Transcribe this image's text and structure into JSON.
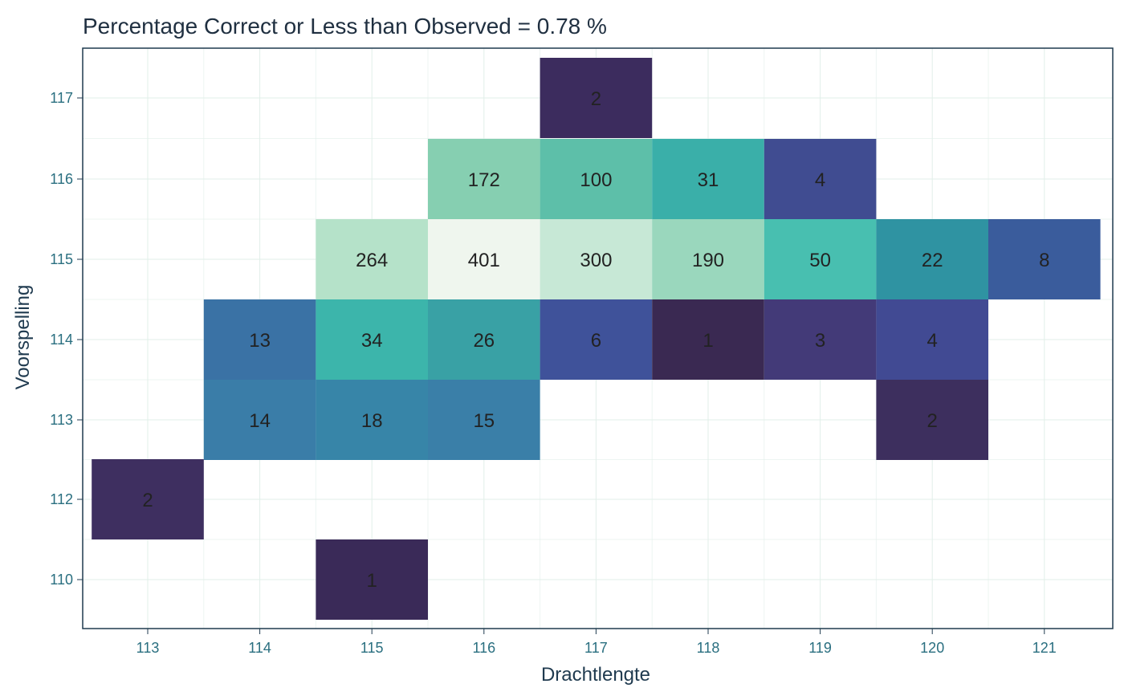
{
  "chart_data": {
    "type": "heatmap",
    "title": "Percentage Correct or Less than Observed =  0.78 %",
    "xlabel": "Drachtlengte",
    "ylabel": "Voorspelling",
    "x_ticks": [
      "113",
      "114",
      "115",
      "116",
      "117",
      "118",
      "119",
      "120",
      "121"
    ],
    "y_ticks": [
      "117",
      "116",
      "115",
      "114",
      "113",
      "112",
      "110"
    ],
    "xlim": [
      112.5,
      121.5
    ],
    "ylim": [
      109.5,
      117.5
    ],
    "y_scale_note": "rows evenly spaced by category",
    "color_scale": {
      "low": "#3b2a5c",
      "mid": "#3fb0a8",
      "high": "#f2f5ee"
    },
    "legend": "none",
    "grid": true,
    "cells": [
      {
        "x": 117,
        "y": 117,
        "value": 2,
        "color": "#3c2c5e"
      },
      {
        "x": 116,
        "y": 116,
        "value": 172,
        "color": "#86cfb1"
      },
      {
        "x": 117,
        "y": 116,
        "value": 100,
        "color": "#5dbfa9"
      },
      {
        "x": 118,
        "y": 116,
        "value": 31,
        "color": "#3aafa9"
      },
      {
        "x": 119,
        "y": 116,
        "value": 4,
        "color": "#404c91"
      },
      {
        "x": 115,
        "y": 115,
        "value": 264,
        "color": "#b5e2c9"
      },
      {
        "x": 116,
        "y": 115,
        "value": 401,
        "color": "#eff6ee"
      },
      {
        "x": 117,
        "y": 115,
        "value": 300,
        "color": "#c7e8d6"
      },
      {
        "x": 118,
        "y": 115,
        "value": 190,
        "color": "#9ad7bd"
      },
      {
        "x": 119,
        "y": 115,
        "value": 50,
        "color": "#48bfb0"
      },
      {
        "x": 120,
        "y": 115,
        "value": 22,
        "color": "#2f93a2"
      },
      {
        "x": 121,
        "y": 115,
        "value": 8,
        "color": "#3a5c9c"
      },
      {
        "x": 114,
        "y": 114,
        "value": 13,
        "color": "#3a72a5"
      },
      {
        "x": 115,
        "y": 114,
        "value": 34,
        "color": "#3cb5ab"
      },
      {
        "x": 116,
        "y": 114,
        "value": 26,
        "color": "#39a1a5"
      },
      {
        "x": 117,
        "y": 114,
        "value": 6,
        "color": "#3f529a"
      },
      {
        "x": 118,
        "y": 114,
        "value": 1,
        "color": "#3a2952"
      },
      {
        "x": 119,
        "y": 114,
        "value": 3,
        "color": "#433a78"
      },
      {
        "x": 120,
        "y": 114,
        "value": 4,
        "color": "#414a93"
      },
      {
        "x": 114,
        "y": 113,
        "value": 14,
        "color": "#3a7da8"
      },
      {
        "x": 115,
        "y": 113,
        "value": 18,
        "color": "#3785a8"
      },
      {
        "x": 116,
        "y": 113,
        "value": 15,
        "color": "#3a7fa8"
      },
      {
        "x": 120,
        "y": 113,
        "value": 2,
        "color": "#3d2f5e"
      },
      {
        "x": 113,
        "y": 112,
        "value": 2,
        "color": "#3e2f60"
      },
      {
        "x": 115,
        "y": 110,
        "value": 1,
        "color": "#3a2a58"
      }
    ]
  }
}
